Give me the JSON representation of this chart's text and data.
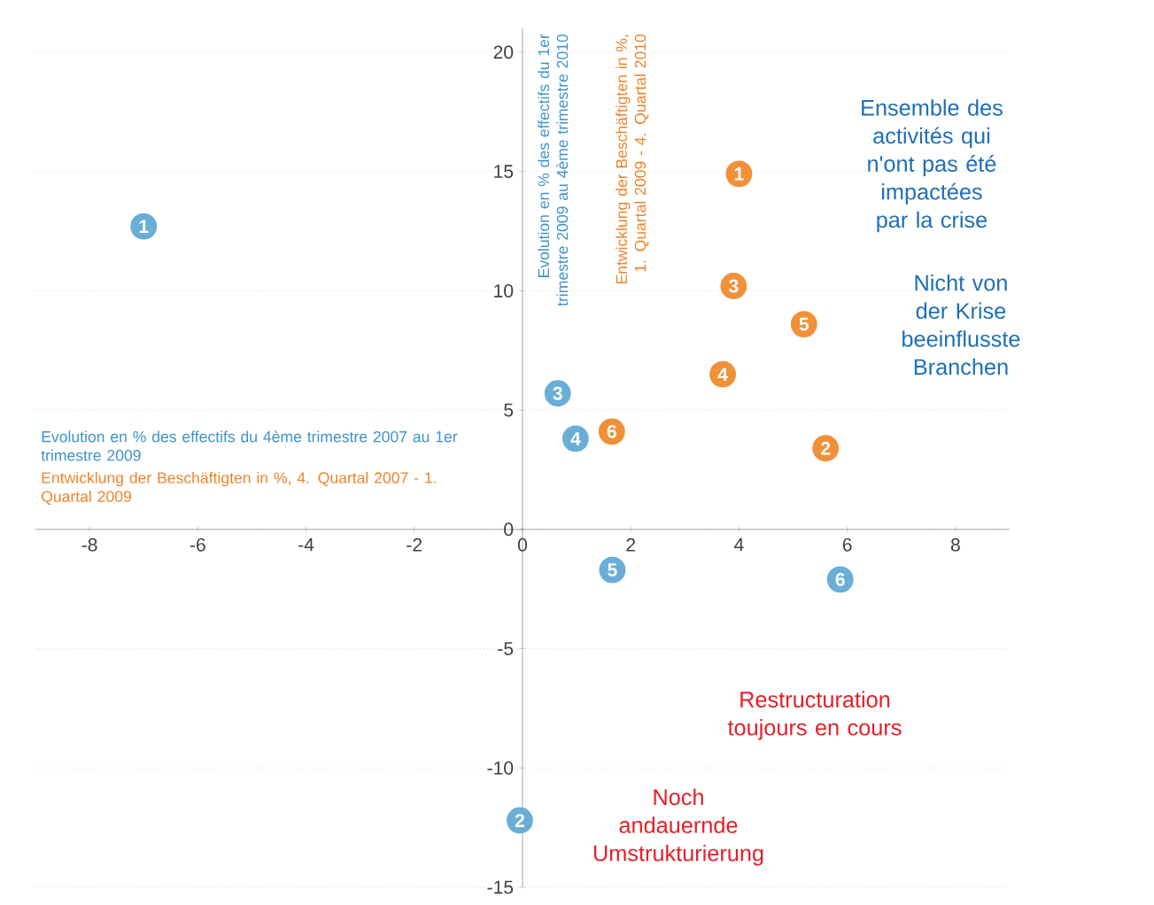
{
  "chart_data": {
    "type": "scatter",
    "xlabel": "Evolution en % des effectifs du 4ème trimestre 2007 au 1er trimestre 2009",
    "ylabel": "Evolution en % des effectifs du 1er trimestre 2009 au 4ème trimestre 2010",
    "xlim": [
      -9,
      9
    ],
    "ylim": [
      -15,
      21
    ],
    "xticks": [
      -8,
      -6,
      -4,
      -2,
      0,
      2,
      4,
      6,
      8
    ],
    "yticks": [
      -15,
      -10,
      -5,
      0,
      5,
      10,
      15,
      20
    ],
    "grid": "y",
    "marker": "circle",
    "series": [
      {
        "color": "#6aaed6",
        "x": [
          -7.0,
          -0.05,
          0.65,
          0.98,
          1.66,
          5.87
        ],
        "values": [
          12.7,
          -12.2,
          5.7,
          3.8,
          -1.7,
          -2.1
        ]
      },
      {
        "color": "#f0913a",
        "x": [
          4.0,
          5.6,
          3.9,
          3.7,
          5.2,
          1.65
        ],
        "values": [
          14.9,
          3.4,
          10.2,
          6.5,
          8.6,
          4.1
        ]
      }
    ],
    "annotations": [
      "Entwicklung der Beschäftigten in %, 4. Quartal 2007 - 1. Quartal 2009",
      "Entwicklung der Beschäftigten in %, 1. Quartal 2009 - 4. Quartal 2010",
      "Ensemble des activités qui n'ont pas été impactées par la crise",
      "Nicht von der Krise beeinflusste Branchen",
      "Restructuration toujours en cours",
      "Noch andauernde Umstrukturierung",
      {
        "text": "1",
        "x": -7.0,
        "y": 12.7
      },
      {
        "text": "2",
        "x": -0.05,
        "y": -12.2
      },
      {
        "text": "3",
        "x": 0.65,
        "y": 5.7
      },
      {
        "text": "4",
        "x": 0.98,
        "y": 3.8
      },
      {
        "text": "5",
        "x": 1.66,
        "y": -1.7
      },
      {
        "text": "6",
        "x": 5.87,
        "y": -2.1
      },
      {
        "text": "1",
        "x": 4.0,
        "y": 14.9
      },
      {
        "text": "2",
        "x": 5.6,
        "y": 3.4
      },
      {
        "text": "3",
        "x": 3.9,
        "y": 10.2
      },
      {
        "text": "4",
        "x": 3.7,
        "y": 6.5
      },
      {
        "text": "5",
        "x": 5.2,
        "y": 8.6
      },
      {
        "text": "6",
        "x": 1.65,
        "y": 4.1
      }
    ]
  }
}
